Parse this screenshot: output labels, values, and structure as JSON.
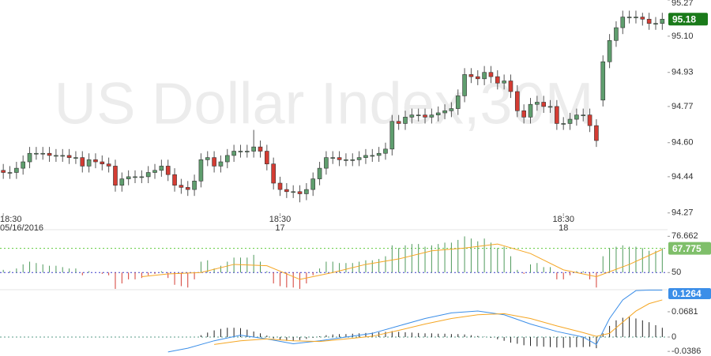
{
  "chart_data": [
    {
      "type": "candlestick",
      "title": "US Dollar Index,30M",
      "up_color": "#5f9e6e",
      "down_color": "#d43c33",
      "xlim": [
        -0.5,
        100.8
      ],
      "ylim": [
        94.195,
        95.27
      ],
      "yticks": [
        95.27,
        {
          "value": 95.1,
          "label": "95.10"
        },
        94.93,
        94.77,
        {
          "value": 94.6,
          "label": "94.60"
        },
        94.44,
        94.27
      ],
      "xticks": [
        {
          "value": 0,
          "label": "18:30"
        },
        {
          "value": 42,
          "label": "18:30"
        },
        {
          "value": 85,
          "label": "18:30"
        }
      ],
      "xtick_dates": [
        "05/16/2016",
        "17",
        "18"
      ],
      "last_price": 95.18,
      "last_price_color": "#1a7a1a",
      "open": [
        94.47,
        94.46,
        94.46,
        94.48,
        94.51,
        94.55,
        94.55,
        94.55,
        94.54,
        94.54,
        94.54,
        94.53,
        94.53,
        94.49,
        94.52,
        94.51,
        94.5,
        94.49,
        94.4,
        94.43,
        94.44,
        94.44,
        94.44,
        94.46,
        94.47,
        94.49,
        94.45,
        94.4,
        94.39,
        94.38,
        94.42,
        94.52,
        94.53,
        94.49,
        94.51,
        94.54,
        94.56,
        94.56,
        94.56,
        94.58,
        94.56,
        94.5,
        94.41,
        94.38,
        94.37,
        94.37,
        94.36,
        94.38,
        94.43,
        94.48,
        94.53,
        94.53,
        94.52,
        94.52,
        94.52,
        94.53,
        94.54,
        94.54,
        94.55,
        94.57,
        94.7,
        94.69,
        94.72,
        94.73,
        94.73,
        94.72,
        94.73,
        94.74,
        94.75,
        94.76,
        94.82,
        94.92,
        94.91,
        94.9,
        94.93,
        94.91,
        94.88,
        94.89,
        94.84,
        94.75,
        94.72,
        94.78,
        94.79,
        94.77,
        94.77,
        94.69,
        94.69,
        94.71,
        94.73,
        94.73,
        94.68,
        94.8,
        94.98,
        95.08,
        95.14,
        95.19,
        95.19,
        95.19,
        95.18,
        95.16,
        95.16
      ],
      "high": [
        94.5,
        94.49,
        94.51,
        94.54,
        94.58,
        94.58,
        94.58,
        94.58,
        94.57,
        94.57,
        94.57,
        94.56,
        94.56,
        94.55,
        94.55,
        94.54,
        94.53,
        94.52,
        94.46,
        94.47,
        94.47,
        94.47,
        94.49,
        94.5,
        94.52,
        94.52,
        94.48,
        94.43,
        94.42,
        94.45,
        94.55,
        94.56,
        94.56,
        94.54,
        94.57,
        94.59,
        94.59,
        94.59,
        94.66,
        94.61,
        94.59,
        94.53,
        94.44,
        94.41,
        94.4,
        94.4,
        94.41,
        94.46,
        94.51,
        94.56,
        94.56,
        94.56,
        94.55,
        94.55,
        94.56,
        94.57,
        94.57,
        94.58,
        94.6,
        94.73,
        94.73,
        94.75,
        94.76,
        94.76,
        94.76,
        94.76,
        94.77,
        94.78,
        94.79,
        94.85,
        94.95,
        94.95,
        94.94,
        94.96,
        94.96,
        94.94,
        94.92,
        94.92,
        94.87,
        94.78,
        94.81,
        94.82,
        94.82,
        94.8,
        94.8,
        94.72,
        94.74,
        94.76,
        94.76,
        94.76,
        94.71,
        95.01,
        95.11,
        95.17,
        95.22,
        95.22,
        95.22,
        95.21,
        95.21,
        95.19,
        95.21
      ],
      "low": [
        94.43,
        94.43,
        94.43,
        94.45,
        94.48,
        94.52,
        94.52,
        94.51,
        94.51,
        94.51,
        94.5,
        94.5,
        94.46,
        94.46,
        94.48,
        94.47,
        94.46,
        94.37,
        94.37,
        94.4,
        94.41,
        94.41,
        94.41,
        94.43,
        94.44,
        94.42,
        94.37,
        94.36,
        94.35,
        94.35,
        94.39,
        94.49,
        94.46,
        94.46,
        94.48,
        94.51,
        94.53,
        94.53,
        94.53,
        94.53,
        94.47,
        94.38,
        94.35,
        94.34,
        94.34,
        94.32,
        94.33,
        94.35,
        94.4,
        94.45,
        94.5,
        94.49,
        94.49,
        94.49,
        94.49,
        94.5,
        94.51,
        94.51,
        94.52,
        94.54,
        94.66,
        94.66,
        94.69,
        94.7,
        94.69,
        94.69,
        94.7,
        94.71,
        94.72,
        94.73,
        94.79,
        94.88,
        94.87,
        94.87,
        94.88,
        94.85,
        94.85,
        94.81,
        94.72,
        94.69,
        94.69,
        94.75,
        94.74,
        94.74,
        94.66,
        94.66,
        94.66,
        94.68,
        94.7,
        94.65,
        94.58,
        94.77,
        94.95,
        95.05,
        95.11,
        95.16,
        95.16,
        95.15,
        95.13,
        95.13,
        95.13
      ],
      "close": [
        94.46,
        94.46,
        94.48,
        94.51,
        94.55,
        94.55,
        94.55,
        94.54,
        94.54,
        94.54,
        94.53,
        94.53,
        94.49,
        94.52,
        94.51,
        94.5,
        94.49,
        94.4,
        94.43,
        94.44,
        94.44,
        94.44,
        94.46,
        94.47,
        94.49,
        94.45,
        94.4,
        94.39,
        94.38,
        94.42,
        94.52,
        94.53,
        94.49,
        94.51,
        94.54,
        94.56,
        94.56,
        94.56,
        94.58,
        94.56,
        94.5,
        94.41,
        94.38,
        94.37,
        94.37,
        94.36,
        94.38,
        94.43,
        94.48,
        94.53,
        94.53,
        94.52,
        94.52,
        94.52,
        94.53,
        94.54,
        94.54,
        94.55,
        94.57,
        94.7,
        94.69,
        94.72,
        94.73,
        94.73,
        94.72,
        94.73,
        94.74,
        94.75,
        94.76,
        94.82,
        94.92,
        94.91,
        94.9,
        94.93,
        94.91,
        94.88,
        94.89,
        94.84,
        94.75,
        94.72,
        94.78,
        94.79,
        94.77,
        94.77,
        94.69,
        94.69,
        94.71,
        94.73,
        94.73,
        94.68,
        94.61,
        94.98,
        95.08,
        95.14,
        95.19,
        95.19,
        95.19,
        95.18,
        95.16,
        95.16,
        95.18
      ]
    },
    {
      "type": "oscillator",
      "xlim": [
        -0.5,
        100.8
      ],
      "ylim": [
        37.4,
        81.5
      ],
      "yticks": [
        76.662,
        50
      ],
      "levels": [
        {
          "value": 67.775,
          "color": "#5ccc3a"
        },
        {
          "value": 50,
          "color": "#3a3acc"
        }
      ],
      "up_color": "#4f9a5c",
      "down_color": "#d43c33",
      "histogram": [
        52,
        51,
        53,
        56,
        58,
        57,
        56,
        55,
        55,
        54,
        53,
        53,
        48,
        51,
        50,
        49,
        48,
        38,
        42,
        45,
        45,
        46,
        48,
        49,
        51,
        46,
        41,
        40,
        39,
        45,
        58,
        59,
        53,
        55,
        58,
        61,
        61,
        61,
        63,
        58,
        51,
        42,
        40,
        39,
        39,
        38,
        42,
        48,
        53,
        58,
        58,
        57,
        57,
        57,
        58,
        59,
        59,
        60,
        62,
        70,
        68,
        70,
        71,
        71,
        69,
        70,
        71,
        72,
        72,
        74,
        76.6,
        75,
        73,
        75,
        72,
        68,
        69,
        62,
        52,
        49,
        56,
        57,
        54,
        54,
        45,
        45,
        48,
        51,
        51,
        45,
        39,
        62,
        68,
        69,
        70,
        69,
        69,
        68,
        66,
        66,
        68
      ],
      "line": {
        "color": "#f5a623",
        "x": [
          21,
          25,
          30,
          35,
          40,
          45,
          50,
          55,
          60,
          65,
          70,
          75,
          80,
          85,
          90,
          95,
          100
        ],
        "values": [
          47,
          49,
          50,
          56,
          55,
          45,
          50,
          56,
          60,
          66,
          68,
          71,
          64,
          52,
          47,
          56,
          67
        ]
      }
    },
    {
      "type": "macd",
      "xlim": [
        -0.5,
        100.8
      ],
      "ylim": [
        -0.051,
        0.1275
      ],
      "yticks": [
        0.0681,
        0,
        -0.0386
      ],
      "zero_color": "#5a9e8a",
      "current_value": 0.1264,
      "current_color": "#3b8ee8",
      "histogram": {
        "color": "#222",
        "x": [
          30,
          31,
          32,
          33,
          34,
          35,
          36,
          37,
          38,
          39,
          40,
          41,
          42,
          43,
          44,
          45,
          46,
          47,
          48,
          49,
          50,
          51,
          52,
          53,
          54,
          55,
          56,
          57,
          58,
          59,
          60,
          61,
          62,
          63,
          64,
          65,
          66,
          67,
          68,
          69,
          70,
          71,
          72,
          73,
          74,
          75,
          76,
          77,
          78,
          79,
          80,
          81,
          82,
          83,
          84,
          85,
          86,
          87,
          88,
          89,
          90,
          91,
          92,
          93,
          94,
          95,
          96,
          97,
          98,
          99,
          100
        ],
        "values": [
          0.005,
          0.012,
          0.018,
          0.022,
          0.025,
          0.025,
          0.024,
          0.02,
          0.015,
          0.01,
          0.004,
          -0.004,
          -0.008,
          -0.01,
          -0.01,
          -0.008,
          -0.005,
          -0.002,
          0.002,
          0.005,
          0.007,
          0.008,
          0.008,
          0.009,
          0.01,
          0.011,
          0.012,
          0.013,
          0.014,
          0.016,
          0.014,
          0.013,
          0.012,
          0.011,
          0.01,
          0.01,
          0.009,
          0.009,
          0.008,
          0.008,
          0.007,
          0.005,
          0.003,
          0.001,
          -0.002,
          -0.006,
          -0.01,
          -0.015,
          -0.018,
          -0.022,
          -0.024,
          -0.025,
          -0.026,
          -0.027,
          -0.028,
          -0.029,
          -0.028,
          -0.027,
          -0.027,
          -0.026,
          -0.03,
          0.01,
          0.03,
          0.045,
          0.052,
          0.055,
          0.05,
          0.045,
          0.04,
          0.032,
          0.025
        ]
      },
      "series": [
        {
          "color": "#3b8ee8",
          "x": [
            25,
            28,
            32,
            36,
            40,
            44,
            48,
            52,
            56,
            60,
            64,
            68,
            72,
            76,
            80,
            84,
            88,
            90,
            92,
            94,
            96,
            98,
            100
          ],
          "values": [
            -0.04,
            -0.03,
            -0.01,
            0.005,
            -0.005,
            -0.018,
            -0.01,
            0,
            0.01,
            0.03,
            0.05,
            0.065,
            0.07,
            0.06,
            0.035,
            0.015,
            0,
            -0.02,
            0.05,
            0.1,
            0.125,
            0.1264,
            0.1264
          ]
        },
        {
          "color": "#f5a623",
          "x": [
            32,
            36,
            40,
            44,
            48,
            52,
            56,
            60,
            64,
            68,
            72,
            76,
            80,
            84,
            88,
            90,
            92,
            94,
            96,
            98,
            100
          ],
          "values": [
            -0.02,
            -0.01,
            -0.005,
            -0.01,
            -0.012,
            -0.005,
            0.002,
            0.018,
            0.035,
            0.05,
            0.06,
            0.063,
            0.05,
            0.03,
            0.012,
            0.002,
            0.01,
            0.04,
            0.07,
            0.09,
            0.1
          ]
        }
      ]
    }
  ]
}
